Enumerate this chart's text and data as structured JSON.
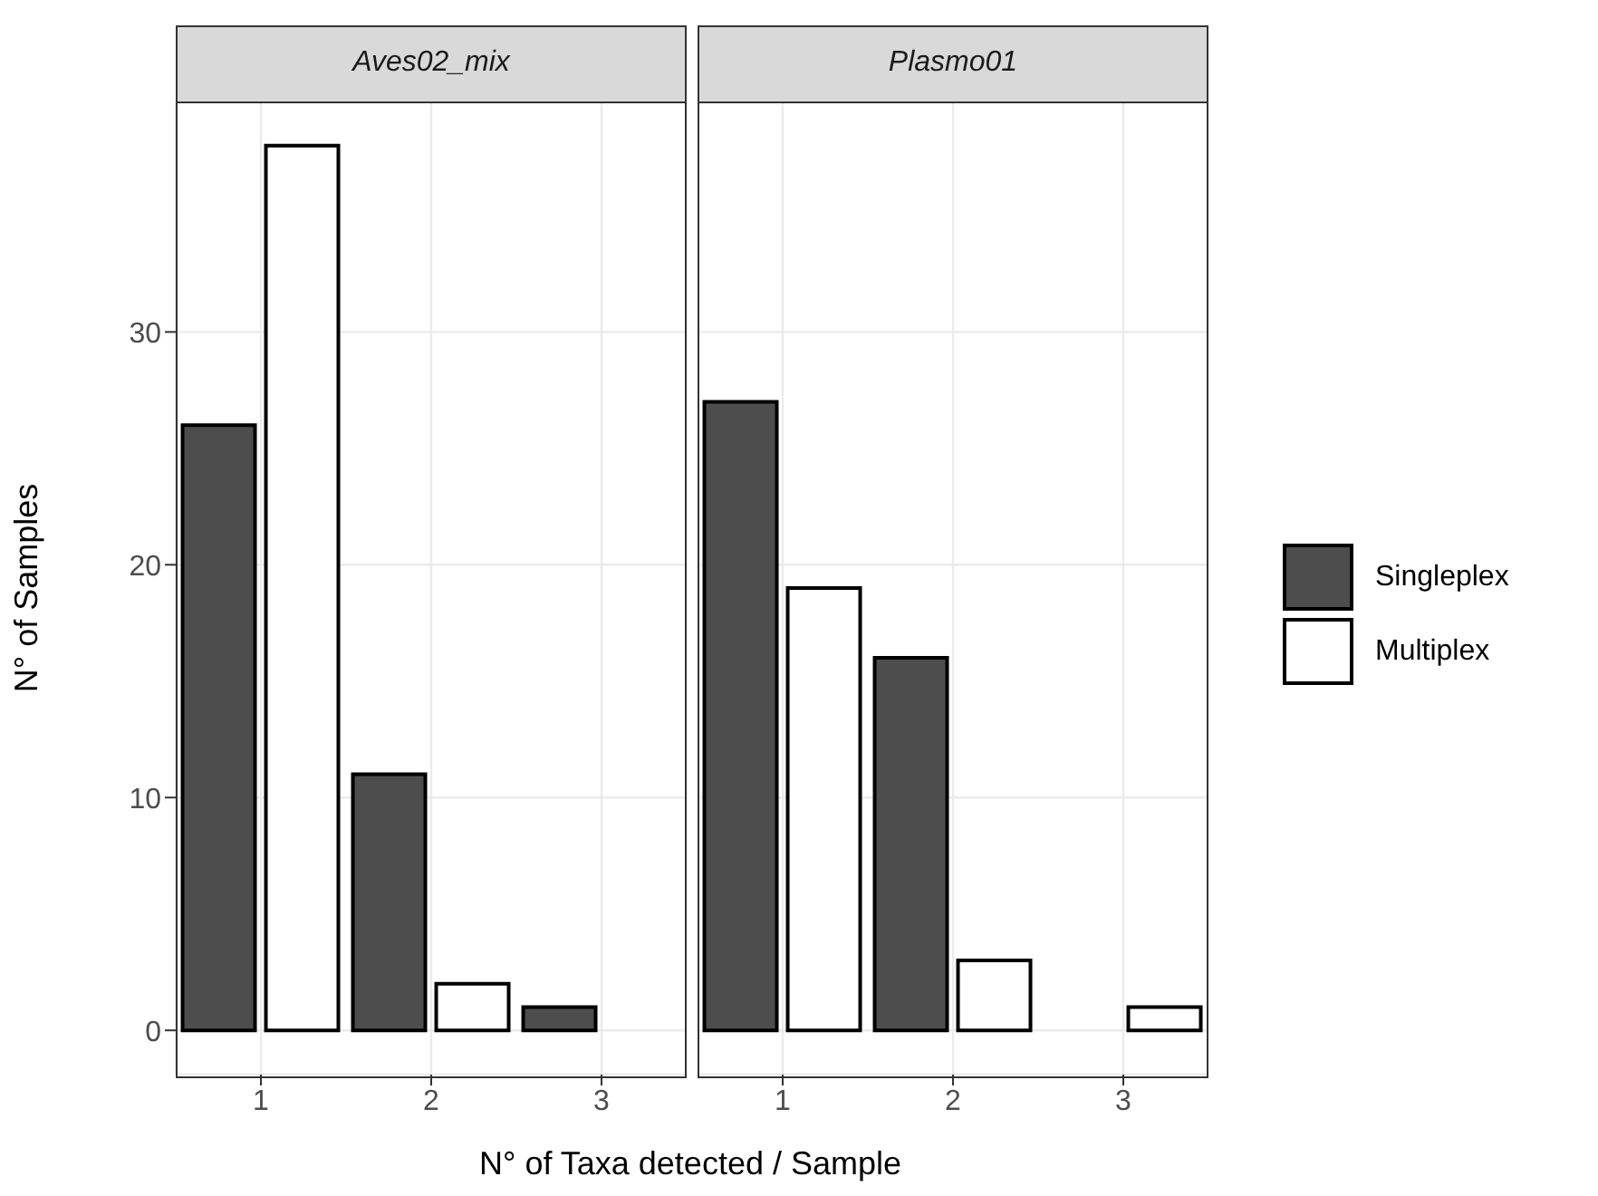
{
  "chart_data": [
    {
      "type": "bar",
      "title": "Aves02_mix",
      "xlabel": "N° of Taxa detected / Sample",
      "ylabel": "N° of Samples",
      "categories": [
        "1",
        "2",
        "3"
      ],
      "series": [
        {
          "name": "Singleplex",
          "color": "#4d4d4d",
          "values": [
            26,
            11,
            1
          ]
        },
        {
          "name": "Multiplex",
          "color": "#ffffff",
          "values": [
            38,
            2,
            null
          ]
        }
      ],
      "ylim": [
        -1.9,
        39.9
      ],
      "yticks": [
        0,
        10,
        20,
        30
      ],
      "grid": true,
      "legend": "right"
    },
    {
      "type": "bar",
      "title": "Plasmo01",
      "categories": [
        "1",
        "2",
        "3"
      ],
      "series": [
        {
          "color": "#4d4d4d",
          "values": [
            27,
            16,
            null
          ]
        },
        {
          "color": "#ffffff",
          "values": [
            19,
            3,
            1
          ]
        }
      ],
      "ylim": [
        -1.9,
        39.9
      ],
      "yticks": [
        0,
        10,
        20,
        30
      ],
      "grid": true,
      "tick_labels": "x"
    }
  ]
}
